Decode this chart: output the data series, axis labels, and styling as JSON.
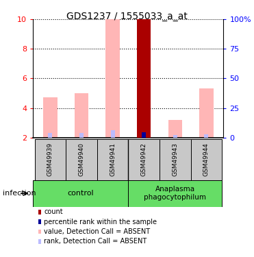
{
  "title": "GDS1237 / 1555033_a_at",
  "samples": [
    "GSM49939",
    "GSM49940",
    "GSM49941",
    "GSM49942",
    "GSM49943",
    "GSM49944"
  ],
  "ylim": [
    2,
    10
  ],
  "ylim_right": [
    0,
    100
  ],
  "yticks_left": [
    2,
    4,
    6,
    8,
    10
  ],
  "yticks_right": [
    0,
    25,
    50,
    75,
    100
  ],
  "ytick_labels_right": [
    "0",
    "25",
    "50",
    "75",
    "100%"
  ],
  "pink_bar_bottom": 2,
  "pink_bar_heights": [
    2.7,
    3.0,
    8.0,
    0,
    1.2,
    3.3
  ],
  "light_blue_bar_heights": [
    0.3,
    0.3,
    0.5,
    0,
    0.15,
    0.2
  ],
  "dark_red_bar_height": 8.0,
  "dark_blue_bar_height": 0.35,
  "dark_red_bar_index": 3,
  "control_label": "control",
  "treatment_label": "Anaplasma\nphagocytophilum",
  "infection_label": "infection",
  "legend_items": [
    {
      "color": "#AA0000",
      "label": "count"
    },
    {
      "color": "#000099",
      "label": "percentile rank within the sample"
    },
    {
      "color": "#FFB6B6",
      "label": "value, Detection Call = ABSENT"
    },
    {
      "color": "#BBBBFF",
      "label": "rank, Detection Call = ABSENT"
    }
  ],
  "plot_bg": "#ffffff",
  "control_bg": "#66DD66",
  "treatment_bg": "#66DD66",
  "sample_bg": "#C8C8C8",
  "pink_color": "#FFB6B6",
  "light_blue_color": "#BBBBFF",
  "dark_red_color": "#AA0000",
  "dark_blue_color": "#000099"
}
